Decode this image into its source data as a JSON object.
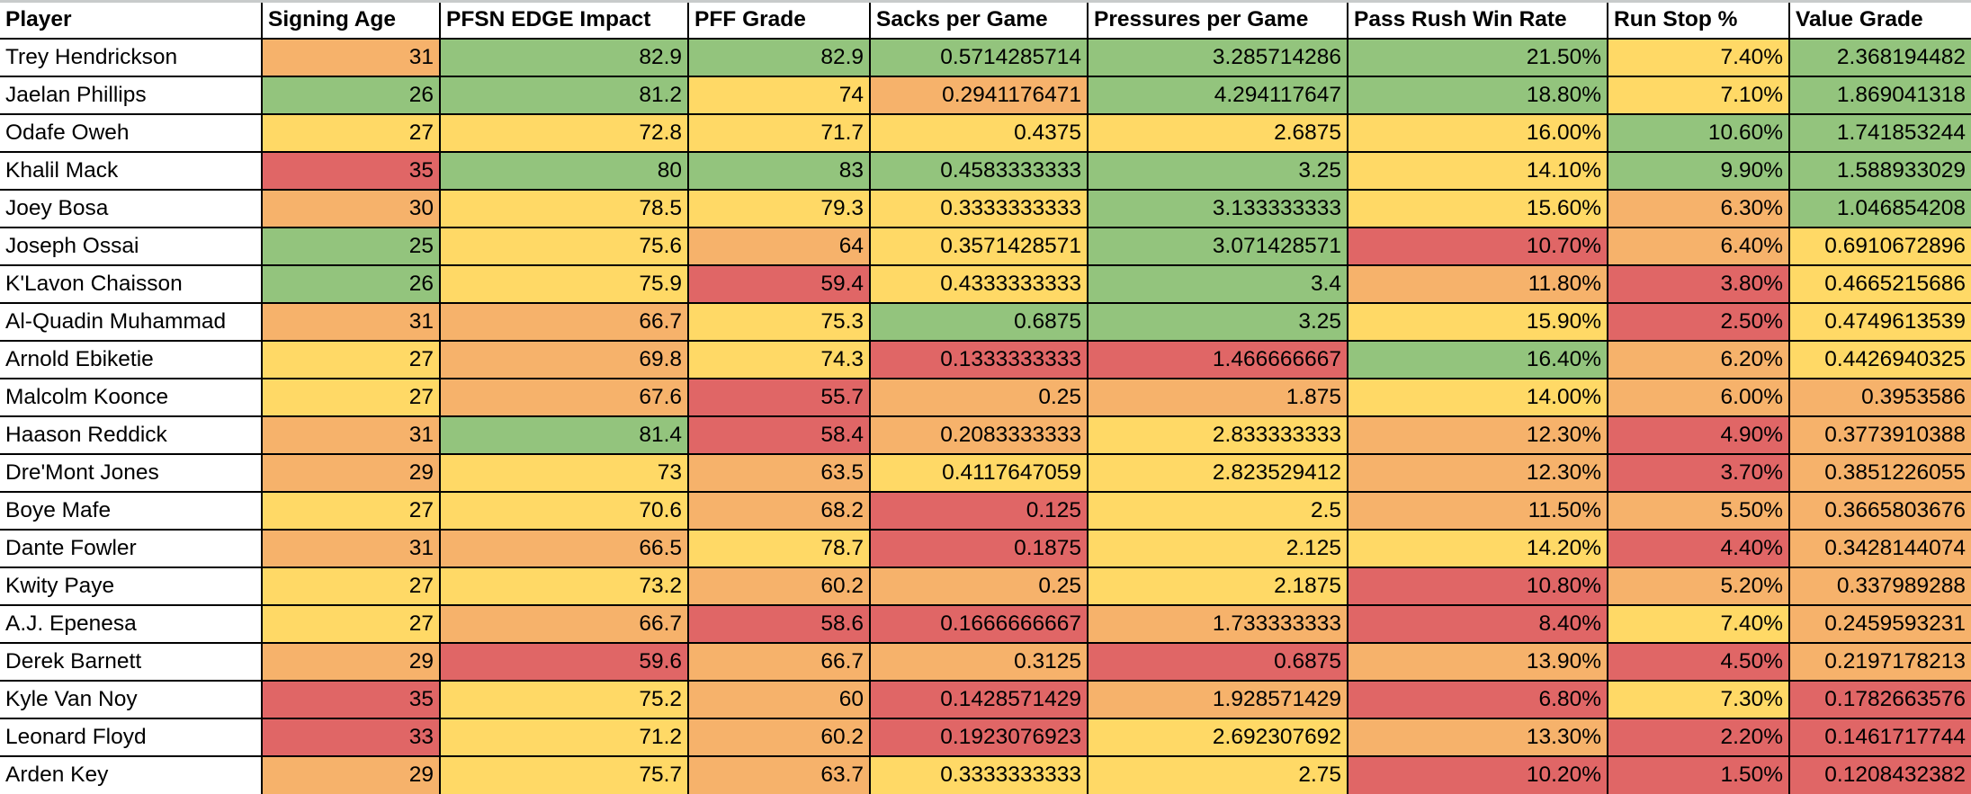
{
  "palette": {
    "g": "#93c47d",
    "y": "#ffd966",
    "o": "#f6b26b",
    "r": "#e06666"
  },
  "columns": [
    "Player",
    "Signing Age",
    "PFSN EDGE Impact",
    "PFF Grade",
    "Sacks per Game",
    "Pressures per Game",
    "Pass Rush Win Rate",
    "Run Stop %",
    "Value Grade"
  ],
  "rows": [
    {
      "player": "Trey Hendrickson",
      "values": [
        "31",
        "82.9",
        "82.9",
        "0.5714285714",
        "3.285714286",
        "21.50%",
        "7.40%",
        "2.368194482"
      ],
      "colors": [
        "o",
        "g",
        "g",
        "g",
        "g",
        "g",
        "y",
        "g"
      ]
    },
    {
      "player": "Jaelan Phillips",
      "values": [
        "26",
        "81.2",
        "74",
        "0.2941176471",
        "4.294117647",
        "18.80%",
        "7.10%",
        "1.869041318"
      ],
      "colors": [
        "g",
        "g",
        "y",
        "o",
        "g",
        "g",
        "y",
        "g"
      ]
    },
    {
      "player": "Odafe Oweh",
      "values": [
        "27",
        "72.8",
        "71.7",
        "0.4375",
        "2.6875",
        "16.00%",
        "10.60%",
        "1.741853244"
      ],
      "colors": [
        "y",
        "y",
        "y",
        "y",
        "y",
        "y",
        "g",
        "g"
      ]
    },
    {
      "player": "Khalil Mack",
      "values": [
        "35",
        "80",
        "83",
        "0.4583333333",
        "3.25",
        "14.10%",
        "9.90%",
        "1.588933029"
      ],
      "colors": [
        "r",
        "g",
        "g",
        "g",
        "g",
        "y",
        "g",
        "g"
      ]
    },
    {
      "player": "Joey Bosa",
      "values": [
        "30",
        "78.5",
        "79.3",
        "0.3333333333",
        "3.133333333",
        "15.60%",
        "6.30%",
        "1.046854208"
      ],
      "colors": [
        "o",
        "y",
        "y",
        "y",
        "g",
        "y",
        "o",
        "g"
      ]
    },
    {
      "player": "Joseph Ossai",
      "values": [
        "25",
        "75.6",
        "64",
        "0.3571428571",
        "3.071428571",
        "10.70%",
        "6.40%",
        "0.6910672896"
      ],
      "colors": [
        "g",
        "y",
        "o",
        "y",
        "g",
        "r",
        "o",
        "y"
      ]
    },
    {
      "player": "K'Lavon Chaisson",
      "values": [
        "26",
        "75.9",
        "59.4",
        "0.4333333333",
        "3.4",
        "11.80%",
        "3.80%",
        "0.4665215686"
      ],
      "colors": [
        "g",
        "y",
        "r",
        "y",
        "g",
        "o",
        "r",
        "y"
      ]
    },
    {
      "player": "Al-Quadin Muhammad",
      "values": [
        "31",
        "66.7",
        "75.3",
        "0.6875",
        "3.25",
        "15.90%",
        "2.50%",
        "0.4749613539"
      ],
      "colors": [
        "o",
        "o",
        "y",
        "g",
        "g",
        "y",
        "r",
        "y"
      ]
    },
    {
      "player": "Arnold Ebiketie",
      "values": [
        "27",
        "69.8",
        "74.3",
        "0.1333333333",
        "1.466666667",
        "16.40%",
        "6.20%",
        "0.4426940325"
      ],
      "colors": [
        "y",
        "o",
        "y",
        "r",
        "r",
        "g",
        "o",
        "y"
      ]
    },
    {
      "player": "Malcolm Koonce",
      "values": [
        "27",
        "67.6",
        "55.7",
        "0.25",
        "1.875",
        "14.00%",
        "6.00%",
        "0.3953586"
      ],
      "colors": [
        "y",
        "o",
        "r",
        "o",
        "o",
        "y",
        "o",
        "o"
      ]
    },
    {
      "player": "Haason Reddick",
      "values": [
        "31",
        "81.4",
        "58.4",
        "0.2083333333",
        "2.833333333",
        "12.30%",
        "4.90%",
        "0.3773910388"
      ],
      "colors": [
        "o",
        "g",
        "r",
        "o",
        "y",
        "o",
        "r",
        "o"
      ]
    },
    {
      "player": "Dre'Mont Jones",
      "values": [
        "29",
        "73",
        "63.5",
        "0.4117647059",
        "2.823529412",
        "12.30%",
        "3.70%",
        "0.3851226055"
      ],
      "colors": [
        "o",
        "y",
        "o",
        "y",
        "y",
        "o",
        "r",
        "o"
      ]
    },
    {
      "player": "Boye Mafe",
      "values": [
        "27",
        "70.6",
        "68.2",
        "0.125",
        "2.5",
        "11.50%",
        "5.50%",
        "0.3665803676"
      ],
      "colors": [
        "y",
        "y",
        "o",
        "r",
        "y",
        "o",
        "o",
        "o"
      ]
    },
    {
      "player": "Dante Fowler",
      "values": [
        "31",
        "66.5",
        "78.7",
        "0.1875",
        "2.125",
        "14.20%",
        "4.40%",
        "0.3428144074"
      ],
      "colors": [
        "o",
        "o",
        "y",
        "r",
        "y",
        "y",
        "r",
        "o"
      ]
    },
    {
      "player": "Kwity Paye",
      "values": [
        "27",
        "73.2",
        "60.2",
        "0.25",
        "2.1875",
        "10.80%",
        "5.20%",
        "0.337989288"
      ],
      "colors": [
        "y",
        "y",
        "o",
        "o",
        "y",
        "r",
        "o",
        "o"
      ]
    },
    {
      "player": "A.J. Epenesa",
      "values": [
        "27",
        "66.7",
        "58.6",
        "0.1666666667",
        "1.733333333",
        "8.40%",
        "7.40%",
        "0.2459593231"
      ],
      "colors": [
        "y",
        "o",
        "r",
        "r",
        "o",
        "r",
        "y",
        "o"
      ]
    },
    {
      "player": "Derek Barnett",
      "values": [
        "29",
        "59.6",
        "66.7",
        "0.3125",
        "0.6875",
        "13.90%",
        "4.50%",
        "0.2197178213"
      ],
      "colors": [
        "o",
        "r",
        "o",
        "o",
        "r",
        "o",
        "r",
        "o"
      ]
    },
    {
      "player": "Kyle Van Noy",
      "values": [
        "35",
        "75.2",
        "60",
        "0.1428571429",
        "1.928571429",
        "6.80%",
        "7.30%",
        "0.1782663576"
      ],
      "colors": [
        "r",
        "y",
        "o",
        "r",
        "o",
        "r",
        "y",
        "r"
      ]
    },
    {
      "player": "Leonard Floyd",
      "values": [
        "33",
        "71.2",
        "60.2",
        "0.1923076923",
        "2.692307692",
        "13.30%",
        "2.20%",
        "0.1461717744"
      ],
      "colors": [
        "r",
        "y",
        "o",
        "r",
        "y",
        "o",
        "r",
        "r"
      ]
    },
    {
      "player": "Arden Key",
      "values": [
        "29",
        "75.7",
        "63.7",
        "0.3333333333",
        "2.75",
        "10.20%",
        "1.50%",
        "0.1208432382"
      ],
      "colors": [
        "o",
        "y",
        "o",
        "y",
        "y",
        "r",
        "r",
        "r"
      ]
    }
  ]
}
